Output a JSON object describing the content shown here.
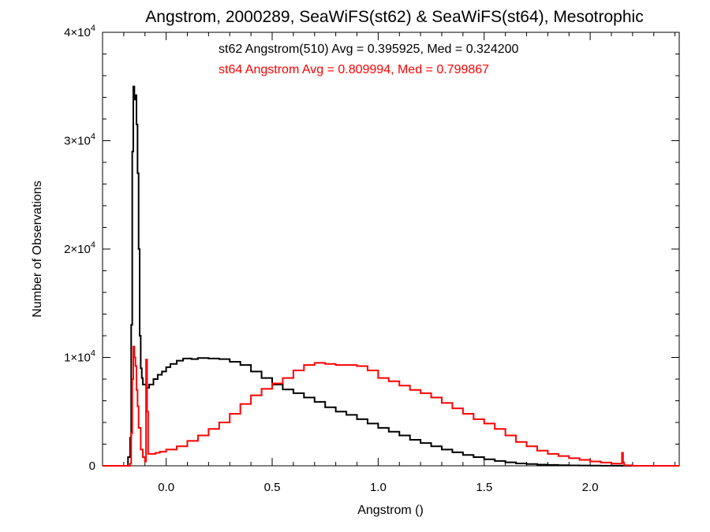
{
  "chart_data": {
    "type": "line",
    "title": "Angstrom, 2000289, SeaWiFS(st62) & SeaWiFS(st64), Mesotrophic",
    "xlabel": "Angstrom ()",
    "ylabel": "Number of Observations",
    "xlim": [
      -0.3,
      2.42
    ],
    "ylim": [
      0,
      40000
    ],
    "x_ticks": [
      {
        "value": 0.0,
        "label": "0.0"
      },
      {
        "value": 0.5,
        "label": "0.5"
      },
      {
        "value": 1.0,
        "label": "1.0"
      },
      {
        "value": 1.5,
        "label": "1.5"
      },
      {
        "value": 2.0,
        "label": "2.0"
      }
    ],
    "y_ticks": [
      {
        "value": 0,
        "mantissa": "0",
        "exponent": ""
      },
      {
        "value": 10000,
        "mantissa": "1×10",
        "exponent": "4"
      },
      {
        "value": 20000,
        "mantissa": "2×10",
        "exponent": "4"
      },
      {
        "value": 30000,
        "mantissa": "3×10",
        "exponent": "4"
      },
      {
        "value": 40000,
        "mantissa": "4×10",
        "exponent": "4"
      }
    ],
    "annotations": [
      {
        "text": "st62 Angstrom(510) Avg = 0.395925, Med = 0.324200",
        "color": "#000000"
      },
      {
        "text": "st64 Angstrom Avg = 0.809994, Med = 0.799867",
        "color": "#ff0000"
      }
    ],
    "style": "step",
    "series": [
      {
        "color": "#000000",
        "x": [
          -0.3,
          -0.19,
          -0.18,
          -0.17,
          -0.165,
          -0.16,
          -0.155,
          -0.15,
          -0.145,
          -0.14,
          -0.135,
          -0.13,
          -0.125,
          -0.12,
          -0.115,
          -0.11,
          -0.1,
          -0.09,
          -0.08,
          -0.06,
          -0.04,
          -0.02,
          0.0,
          0.02,
          0.05,
          0.08,
          0.1,
          0.12,
          0.15,
          0.2,
          0.25,
          0.3,
          0.35,
          0.4,
          0.45,
          0.5,
          0.55,
          0.6,
          0.65,
          0.7,
          0.75,
          0.8,
          0.85,
          0.9,
          0.95,
          1.0,
          1.05,
          1.1,
          1.15,
          1.2,
          1.25,
          1.3,
          1.35,
          1.4,
          1.45,
          1.5,
          1.55,
          1.6,
          1.65,
          1.7,
          1.75,
          1.8,
          1.85,
          1.9,
          1.95,
          2.0,
          2.05,
          2.1,
          2.15,
          2.2,
          2.25,
          2.28
        ],
        "y": [
          0,
          0,
          800,
          2600,
          13000,
          29000,
          35000,
          33800,
          34200,
          31500,
          27000,
          20000,
          12000,
          9000,
          8100,
          7500,
          7500,
          7200,
          7500,
          8000,
          8400,
          8700,
          9100,
          9400,
          9700,
          9900,
          9900,
          9850,
          9950,
          9900,
          9850,
          9600,
          9300,
          8700,
          8100,
          7500,
          7050,
          6700,
          6300,
          5900,
          5400,
          5000,
          4700,
          4300,
          3900,
          3500,
          3150,
          2800,
          2400,
          2100,
          1800,
          1500,
          1250,
          1000,
          800,
          600,
          450,
          320,
          220,
          160,
          110,
          80,
          55,
          40,
          25,
          15,
          10,
          5,
          0,
          0,
          0,
          0
        ]
      },
      {
        "color": "#ff0000",
        "x": [
          -0.3,
          -0.17,
          -0.165,
          -0.16,
          -0.155,
          -0.15,
          -0.145,
          -0.14,
          -0.135,
          -0.13,
          -0.12,
          -0.11,
          -0.1,
          -0.095,
          -0.09,
          -0.085,
          -0.08,
          -0.07,
          -0.05,
          -0.03,
          0.0,
          0.05,
          0.1,
          0.15,
          0.2,
          0.25,
          0.3,
          0.35,
          0.4,
          0.45,
          0.5,
          0.55,
          0.6,
          0.65,
          0.7,
          0.75,
          0.8,
          0.85,
          0.9,
          0.95,
          1.0,
          1.05,
          1.1,
          1.15,
          1.2,
          1.25,
          1.3,
          1.35,
          1.4,
          1.45,
          1.5,
          1.55,
          1.6,
          1.65,
          1.7,
          1.75,
          1.8,
          1.85,
          1.9,
          1.95,
          2.0,
          2.05,
          2.1,
          2.15,
          2.155,
          2.16,
          2.2,
          2.42
        ],
        "y": [
          0,
          200,
          3000,
          8000,
          11000,
          10000,
          9200,
          7000,
          5500,
          3500,
          1500,
          800,
          400,
          9800,
          5000,
          1100,
          1100,
          1100,
          1200,
          1300,
          1500,
          1800,
          2300,
          2800,
          3400,
          4000,
          4800,
          5700,
          6500,
          7100,
          7600,
          8100,
          8800,
          9300,
          9500,
          9400,
          9300,
          9300,
          9200,
          8800,
          8100,
          7800,
          7400,
          7000,
          6700,
          6300,
          5800,
          5300,
          4800,
          4300,
          3900,
          3400,
          2800,
          2200,
          1800,
          1400,
          1100,
          900,
          700,
          550,
          400,
          300,
          200,
          1200,
          300,
          50,
          0,
          0
        ]
      }
    ]
  }
}
